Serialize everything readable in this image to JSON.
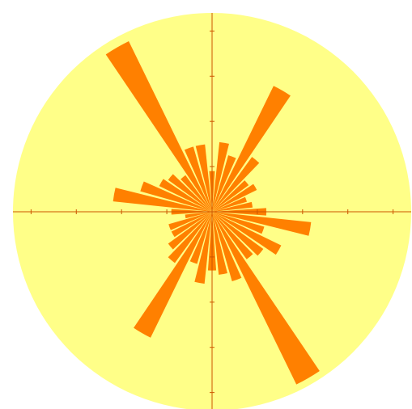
{
  "chart_data": {
    "type": "polar_bar",
    "theta": [
      0,
      10,
      20,
      30,
      40,
      50,
      60,
      70,
      80,
      90,
      100,
      110,
      120,
      130,
      140,
      150,
      160,
      170,
      180,
      190,
      200,
      210,
      220,
      230,
      240,
      250,
      260,
      270,
      280,
      290,
      300,
      310,
      320,
      330,
      340,
      350
    ],
    "values": [
      1.2,
      0.9,
      0.8,
      1.1,
      1.0,
      1.5,
      3.1,
      1.3,
      1.55,
      0.9,
      1.5,
      1.5,
      4.2,
      1.0,
      1.2,
      1.3,
      1.65,
      2.2,
      0.9,
      0.6,
      1.0,
      1.0,
      1.2,
      1.4,
      3.1,
      1.2,
      1.6,
      1.3,
      1.4,
      1.6,
      4.25,
      1.3,
      1.4,
      1.7,
      1.2,
      2.2
    ],
    "color": "#ff8000",
    "background": "#ffff88",
    "axis_color": "#cc5500",
    "rlim": [
      0,
      4.4
    ],
    "rticks": [
      1,
      2,
      3,
      4
    ]
  }
}
